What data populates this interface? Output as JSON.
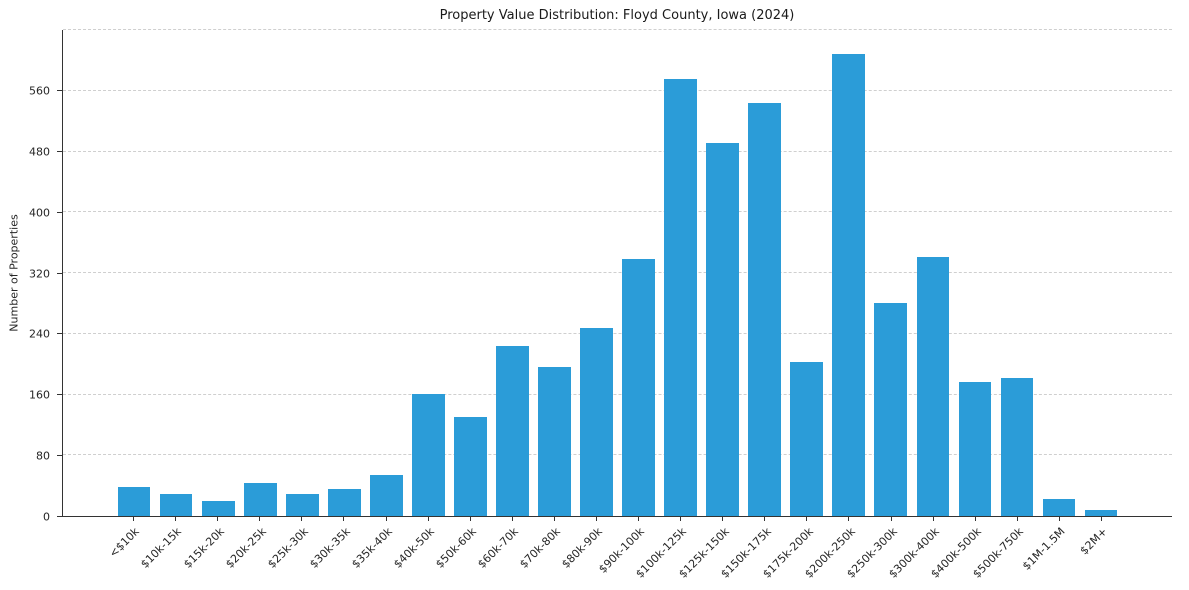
{
  "chart_data": {
    "type": "bar",
    "title": "Property Value Distribution: Floyd County, Iowa (2024)",
    "xlabel": "",
    "ylabel": "Number of Properties",
    "categories": [
      "<$10k",
      "$10k-15k",
      "$15k-20k",
      "$20k-25k",
      "$25k-30k",
      "$30k-35k",
      "$35k-40k",
      "$40k-50k",
      "$50k-60k",
      "$60k-70k",
      "$70k-80k",
      "$80k-90k",
      "$90k-100k",
      "$100k-125k",
      "$125k-150k",
      "$150k-175k",
      "$175k-200k",
      "$200k-250k",
      "$250k-300k",
      "$300k-400k",
      "$400k-500k",
      "$500k-750k",
      "$1M-1.5M",
      "$2M+"
    ],
    "values": [
      38,
      29,
      20,
      43,
      29,
      36,
      54,
      161,
      130,
      224,
      196,
      248,
      338,
      576,
      491,
      544,
      203,
      608,
      280,
      341,
      177,
      182,
      22,
      8
    ],
    "ylim": [
      0,
      640
    ],
    "yticks": [
      0,
      80,
      160,
      240,
      320,
      400,
      480,
      560
    ],
    "grid": "horizontal-dashed",
    "legend": "none",
    "bar_color": "#2b9cd8",
    "grid_color": "#cfcfcf",
    "axis_color": "#333333",
    "text_color": "#262626"
  }
}
